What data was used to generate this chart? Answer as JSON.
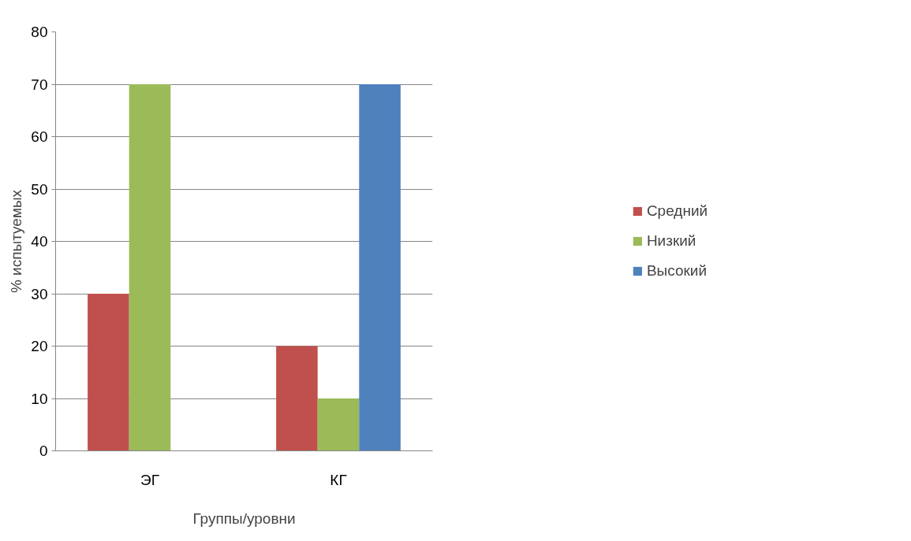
{
  "chart_data": {
    "type": "bar",
    "xlabel": "Группы/уровни",
    "ylabel": "% испытуемых",
    "categories": [
      "ЭГ",
      "КГ"
    ],
    "series": [
      {
        "name": "Средний",
        "color": "#c0504d",
        "values": [
          30,
          20
        ]
      },
      {
        "name": "Низкий",
        "color": "#9bbb59",
        "values": [
          70,
          10
        ]
      },
      {
        "name": "Высокий",
        "color": "#4f81bd",
        "values": [
          null,
          70
        ]
      }
    ],
    "ylim": [
      0,
      80
    ],
    "yticks": [
      0,
      10,
      20,
      30,
      40,
      50,
      60,
      70,
      80
    ],
    "grid": "y",
    "legend": "right"
  }
}
